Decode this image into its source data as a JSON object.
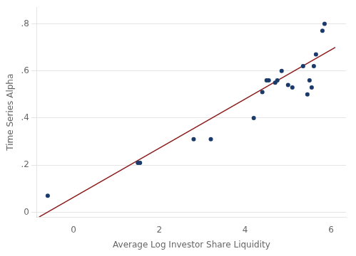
{
  "chart_data": {
    "type": "scatter",
    "xlabel": "Average Log Investor Share Liquidity",
    "ylabel": "Time Series Alpha",
    "series": [
      {
        "type": "scatter",
        "color": "#1a3a6b",
        "x": [
          -0.6,
          1.5,
          1.55,
          2.8,
          3.2,
          4.2,
          4.4,
          4.5,
          4.55,
          4.7,
          4.75,
          4.85,
          5.0,
          5.1,
          5.35,
          5.45,
          5.5,
          5.55,
          5.6,
          5.65,
          5.8,
          5.85
        ],
        "values": [
          0.07,
          0.21,
          0.21,
          0.31,
          0.31,
          0.4,
          0.51,
          0.56,
          0.56,
          0.55,
          0.56,
          0.6,
          0.54,
          0.53,
          0.62,
          0.5,
          0.56,
          0.53,
          0.62,
          0.67,
          0.77,
          0.8
        ]
      },
      {
        "type": "line",
        "color": "#8b1a1a",
        "x": [
          -0.8,
          6.1
        ],
        "values": [
          -0.02,
          0.7
        ]
      }
    ],
    "xlim": [
      -0.85,
      6.35
    ],
    "ylim": [
      -0.02,
      0.87
    ],
    "xticks": [
      0,
      2,
      4,
      6
    ],
    "yticks": [
      0,
      {
        "value": 0.2,
        "label": ".2"
      },
      {
        "value": 0.4,
        "label": ".4"
      },
      {
        "value": 0.6,
        "label": ".6"
      },
      {
        "value": 0.8,
        "label": ".8"
      }
    ],
    "grid": "y"
  }
}
